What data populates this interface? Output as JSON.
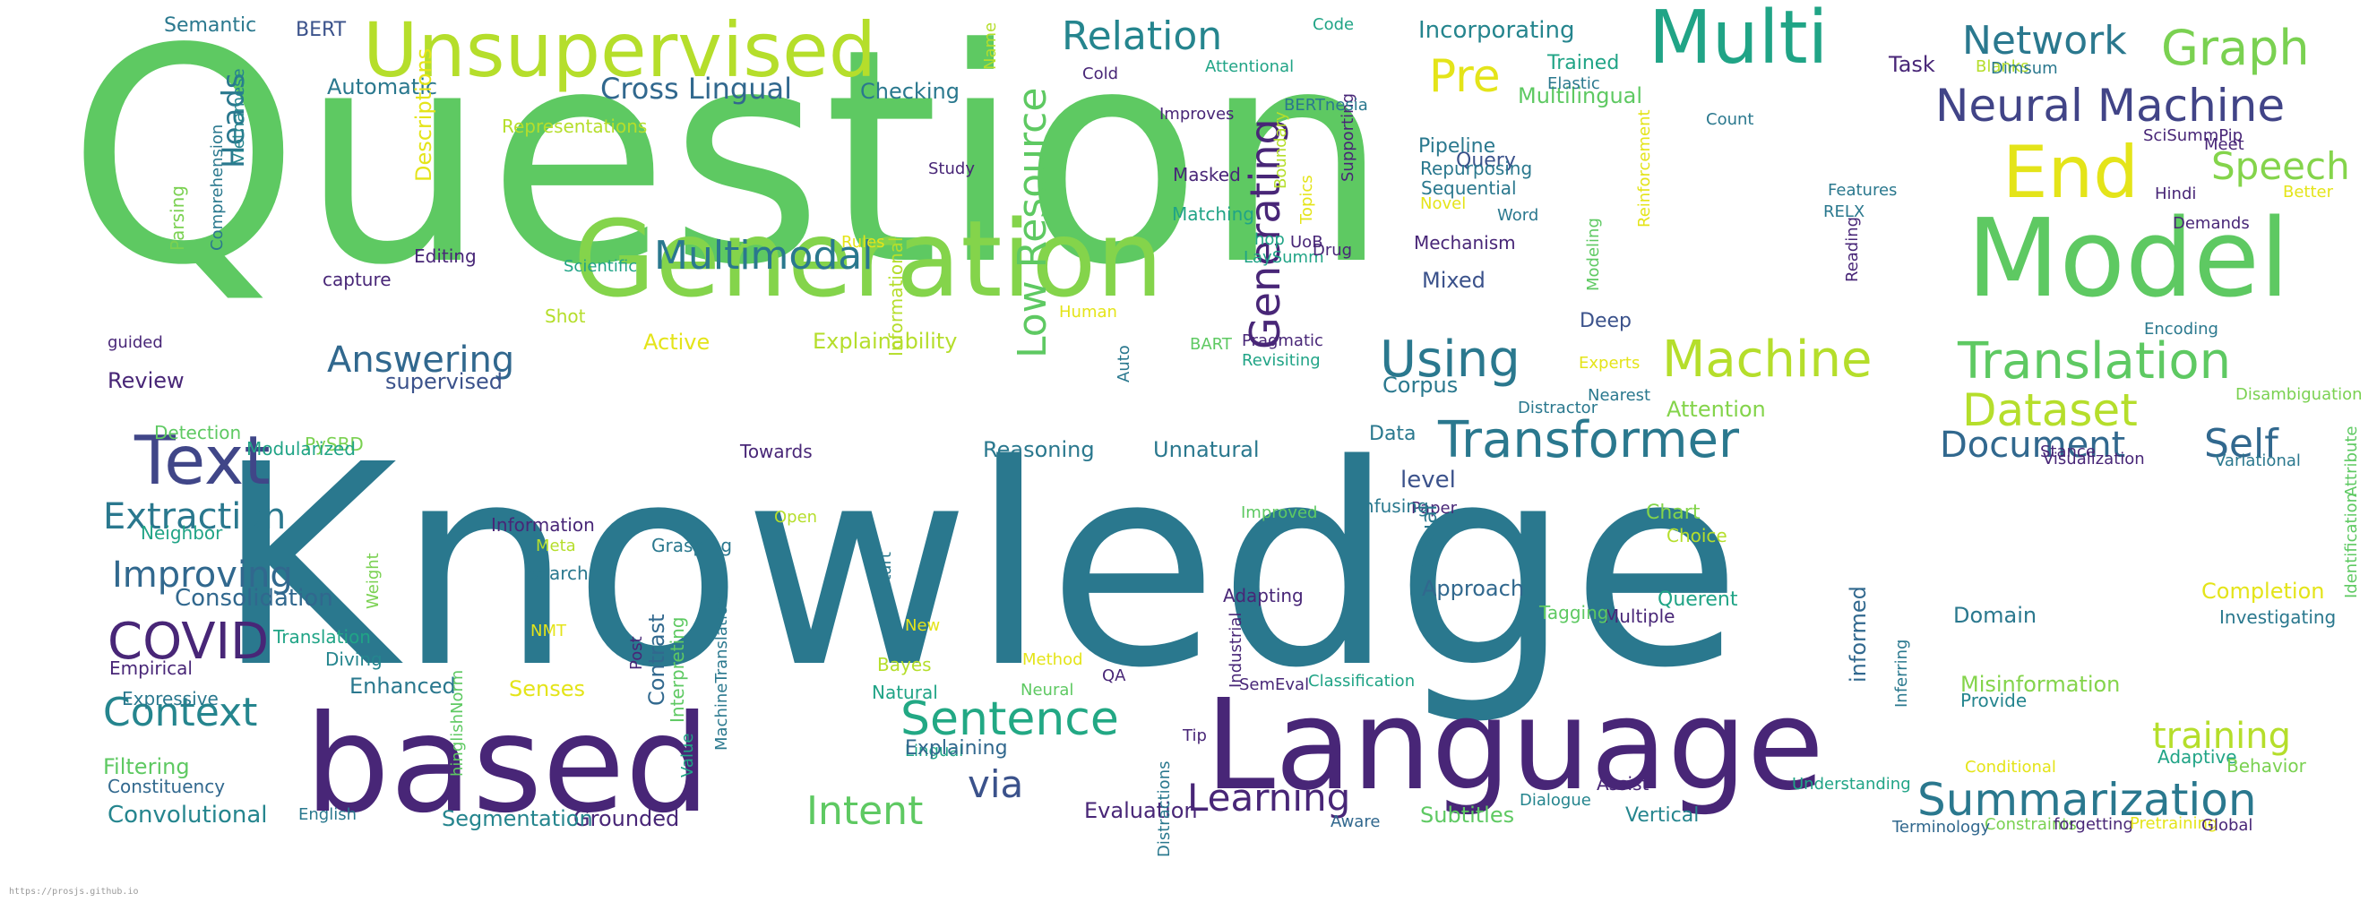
{
  "words": [
    {
      "text": "Question",
      "color": "#5ec962",
      "vertical": false
    },
    {
      "text": "Knowledge",
      "color": "#2a788e",
      "vertical": false
    },
    {
      "text": "based",
      "color": "#482677",
      "vertical": false
    },
    {
      "text": "Language",
      "color": "#482677",
      "vertical": false
    },
    {
      "text": "Generation",
      "color": "#84d44b",
      "vertical": false
    },
    {
      "text": "Model",
      "color": "#5ec962",
      "vertical": false
    },
    {
      "text": "Unsupervised",
      "color": "#b5de2b",
      "vertical": false
    },
    {
      "text": "Multi",
      "color": "#20a486",
      "vertical": false
    },
    {
      "text": "Text",
      "color": "#404688",
      "vertical": false
    },
    {
      "text": "End",
      "color": "#e4e419",
      "vertical": false
    },
    {
      "text": "Machine",
      "color": "#b5de2b",
      "vertical": false
    },
    {
      "text": "Translation",
      "color": "#5ec962",
      "vertical": false
    },
    {
      "text": "Transformer",
      "color": "#2a788e",
      "vertical": false
    },
    {
      "text": "Dataset",
      "color": "#b5de2b",
      "vertical": false
    },
    {
      "text": "Summarization",
      "color": "#2a788e",
      "vertical": false
    },
    {
      "text": "Sentence",
      "color": "#22a884",
      "vertical": false
    },
    {
      "text": "Answering",
      "color": "#31688e",
      "vertical": false
    },
    {
      "text": "COVID",
      "color": "#482677",
      "vertical": false
    },
    {
      "text": "Context",
      "color": "#25858e",
      "vertical": false
    },
    {
      "text": "Neural Machine",
      "color": "#414487",
      "vertical": false
    },
    {
      "text": "Graph",
      "color": "#7ad151",
      "vertical": false
    },
    {
      "text": "Network",
      "color": "#2a788e",
      "vertical": false
    },
    {
      "text": "Relation",
      "color": "#25858e",
      "vertical": false
    },
    {
      "text": "Pre",
      "color": "#e4e419",
      "vertical": false
    },
    {
      "text": "Speech",
      "color": "#84d44b",
      "vertical": false
    },
    {
      "text": "Using",
      "color": "#2a788e",
      "vertical": false
    },
    {
      "text": "Document",
      "color": "#31688e",
      "vertical": false
    },
    {
      "text": "Self",
      "color": "#31688e",
      "vertical": false
    },
    {
      "text": "Extraction",
      "color": "#2a788e",
      "vertical": false
    },
    {
      "text": "Improving",
      "color": "#31688e",
      "vertical": false
    },
    {
      "text": "Learning",
      "color": "#482677",
      "vertical": false
    },
    {
      "text": "Intent",
      "color": "#5ec962",
      "vertical": false
    },
    {
      "text": "via",
      "color": "#3b528b",
      "vertical": false
    },
    {
      "text": "training",
      "color": "#b5de2b",
      "vertical": false
    },
    {
      "text": "Multimodal",
      "color": "#2a788e",
      "vertical": false
    },
    {
      "text": "Cross Lingual",
      "color": "#31688e",
      "vertical": false
    },
    {
      "text": "Low Resource",
      "color": "#5ec962",
      "vertical": true
    },
    {
      "text": "Generating",
      "color": "#482677",
      "vertical": true
    },
    {
      "text": "Semantic",
      "color": "#2a788e",
      "vertical": false
    },
    {
      "text": "BERT",
      "color": "#3b528b",
      "vertical": false
    },
    {
      "text": "Automatic",
      "color": "#2a788e",
      "vertical": false
    },
    {
      "text": "Checking",
      "color": "#2a788e",
      "vertical": false
    },
    {
      "text": "Incorporating",
      "color": "#25858e",
      "vertical": false
    },
    {
      "text": "Trained",
      "color": "#20a486",
      "vertical": false
    },
    {
      "text": "Task",
      "color": "#482677",
      "vertical": false
    },
    {
      "text": "Multilingual",
      "color": "#5ec962",
      "vertical": false
    },
    {
      "text": "Query",
      "color": "#3b528b",
      "vertical": false
    },
    {
      "text": "Pipeline",
      "color": "#2a788e",
      "vertical": false
    },
    {
      "text": "Repurposing",
      "color": "#2a788e",
      "vertical": false
    },
    {
      "text": "Sequential",
      "color": "#2a788e",
      "vertical": false
    },
    {
      "text": "Mechanism",
      "color": "#482677",
      "vertical": false
    },
    {
      "text": "Mixed",
      "color": "#3b528b",
      "vertical": false
    },
    {
      "text": "Deep",
      "color": "#3b528b",
      "vertical": false
    },
    {
      "text": "Corpus",
      "color": "#2a788e",
      "vertical": false
    },
    {
      "text": "Attention",
      "color": "#84d44b",
      "vertical": false
    },
    {
      "text": "Data",
      "color": "#2a788e",
      "vertical": false
    },
    {
      "text": "level",
      "color": "#3b528b",
      "vertical": false
    },
    {
      "text": "Paper",
      "color": "#482677",
      "vertical": false
    },
    {
      "text": "Chart",
      "color": "#84d44b",
      "vertical": false
    },
    {
      "text": "Approach",
      "color": "#31688e",
      "vertical": false
    },
    {
      "text": "Multiple",
      "color": "#482677",
      "vertical": false
    },
    {
      "text": "Querent",
      "color": "#20a486",
      "vertical": false
    },
    {
      "text": "Choice",
      "color": "#b5de2b",
      "vertical": false
    },
    {
      "text": "Completion",
      "color": "#e4e419",
      "vertical": false
    },
    {
      "text": "Investigating",
      "color": "#2a788e",
      "vertical": false
    },
    {
      "text": "Domain",
      "color": "#2a788e",
      "vertical": false
    },
    {
      "text": "Misinformation",
      "color": "#84d44b",
      "vertical": false
    },
    {
      "text": "Provide",
      "color": "#25858e",
      "vertical": false
    },
    {
      "text": "Adaptive",
      "color": "#20a486",
      "vertical": false
    },
    {
      "text": "Behavior",
      "color": "#7ad151",
      "vertical": false
    },
    {
      "text": "Conditional",
      "color": "#e4e419",
      "vertical": false
    },
    {
      "text": "Constraints",
      "color": "#7ad151",
      "vertical": false
    },
    {
      "text": "forgetting",
      "color": "#482677",
      "vertical": false
    },
    {
      "text": "Pretraining",
      "color": "#e4e419",
      "vertical": false
    },
    {
      "text": "Global",
      "color": "#482677",
      "vertical": false
    },
    {
      "text": "Terminology",
      "color": "#31688e",
      "vertical": false
    },
    {
      "text": "Understanding",
      "color": "#20a486",
      "vertical": false
    },
    {
      "text": "Vertical",
      "color": "#25858e",
      "vertical": false
    },
    {
      "text": "Assist",
      "color": "#482677",
      "vertical": false
    },
    {
      "text": "Dialogue",
      "color": "#25858e",
      "vertical": false
    },
    {
      "text": "Subtitles",
      "color": "#5ec962",
      "vertical": false
    },
    {
      "text": "Aware",
      "color": "#31688e",
      "vertical": false
    },
    {
      "text": "Evaluation",
      "color": "#482677",
      "vertical": false
    },
    {
      "text": "Grounded",
      "color": "#482677",
      "vertical": false
    },
    {
      "text": "Segmentation",
      "color": "#25858e",
      "vertical": false
    },
    {
      "text": "English",
      "color": "#2a788e",
      "vertical": false
    },
    {
      "text": "Convolutional",
      "color": "#25858e",
      "vertical": false
    },
    {
      "text": "Constituency",
      "color": "#31688e",
      "vertical": false
    },
    {
      "text": "Filtering",
      "color": "#5ec962",
      "vertical": false
    },
    {
      "text": "Expressive",
      "color": "#2a788e",
      "vertical": false
    },
    {
      "text": "Empirical",
      "color": "#482677",
      "vertical": false
    },
    {
      "text": "Enhanced",
      "color": "#2a788e",
      "vertical": false
    },
    {
      "text": "Senses",
      "color": "#e4e419",
      "vertical": false
    },
    {
      "text": "Diving",
      "color": "#25858e",
      "vertical": false
    },
    {
      "text": "Translation",
      "color": "#20a486",
      "vertical": false
    },
    {
      "text": "Consolidation",
      "color": "#31688e",
      "vertical": false
    },
    {
      "text": "Neighbor",
      "color": "#20a486",
      "vertical": false
    },
    {
      "text": "PySBD",
      "color": "#7ad151",
      "vertical": false
    },
    {
      "text": "Modularized",
      "color": "#20a486",
      "vertical": false
    },
    {
      "text": "Detection",
      "color": "#5ec962",
      "vertical": false
    },
    {
      "text": "supervised",
      "color": "#3b528b",
      "vertical": false
    },
    {
      "text": "Review",
      "color": "#482677",
      "vertical": false
    },
    {
      "text": "guided",
      "color": "#482677",
      "vertical": false
    },
    {
      "text": "Shot",
      "color": "#b5de2b",
      "vertical": false
    },
    {
      "text": "capture",
      "color": "#482677",
      "vertical": false
    },
    {
      "text": "Editing",
      "color": "#482677",
      "vertical": false
    },
    {
      "text": "Parsing",
      "color": "#7ad151",
      "vertical": true
    },
    {
      "text": "Comprehension",
      "color": "#2a788e",
      "vertical": true
    },
    {
      "text": "Heads",
      "color": "#2a788e",
      "vertical": true
    },
    {
      "text": "Vietnamese",
      "color": "#25858e",
      "vertical": true
    },
    {
      "text": "Descriptions",
      "color": "#e4e419",
      "vertical": true
    },
    {
      "text": "Representations",
      "color": "#b5de2b",
      "vertical": false
    },
    {
      "text": "Scientific",
      "color": "#20a486",
      "vertical": false
    },
    {
      "text": "Active",
      "color": "#e4e419",
      "vertical": false
    },
    {
      "text": "Explainability",
      "color": "#b5de2b",
      "vertical": false
    },
    {
      "text": "Towards",
      "color": "#482677",
      "vertical": false
    },
    {
      "text": "Reasoning",
      "color": "#2a788e",
      "vertical": false
    },
    {
      "text": "Unnatural",
      "color": "#2a788e",
      "vertical": false
    },
    {
      "text": "Informational",
      "color": "#b5de2b",
      "vertical": true
    },
    {
      "text": "Rules",
      "color": "#e4e419",
      "vertical": false
    },
    {
      "text": "Study",
      "color": "#482677",
      "vertical": false
    },
    {
      "text": "Matching",
      "color": "#20a486",
      "vertical": false
    },
    {
      "text": "hop",
      "color": "#20a486",
      "vertical": false
    },
    {
      "text": "LaySumm",
      "color": "#20a486",
      "vertical": false
    },
    {
      "text": "UoB",
      "color": "#482677",
      "vertical": false
    },
    {
      "text": "Drug",
      "color": "#482677",
      "vertical": false
    },
    {
      "text": "Boundary",
      "color": "#b5de2b",
      "vertical": true
    },
    {
      "text": "Topics",
      "color": "#e4e419",
      "vertical": true
    },
    {
      "text": "Supporting",
      "color": "#482677",
      "vertical": true
    },
    {
      "text": "Masked",
      "color": "#482677",
      "vertical": false
    },
    {
      "text": "Improves",
      "color": "#482677",
      "vertical": false
    },
    {
      "text": "Attentional",
      "color": "#20a486",
      "vertical": false
    },
    {
      "text": "Cold",
      "color": "#482677",
      "vertical": false
    },
    {
      "text": "Code",
      "color": "#20a486",
      "vertical": false
    },
    {
      "text": "Name",
      "color": "#b5de2b",
      "vertical": true
    },
    {
      "text": "BERTnesia",
      "color": "#2a788e",
      "vertical": false
    },
    {
      "text": "Novel",
      "color": "#e4e419",
      "vertical": false
    },
    {
      "text": "Word",
      "color": "#2a788e",
      "vertical": false
    },
    {
      "text": "Reinforcement",
      "color": "#e4e419",
      "vertical": true
    },
    {
      "text": "Modeling",
      "color": "#5ec962",
      "vertical": true
    },
    {
      "text": "Reading",
      "color": "#482677",
      "vertical": true
    },
    {
      "text": "RELX",
      "color": "#2a788e",
      "vertical": false
    },
    {
      "text": "Features",
      "color": "#2a788e",
      "vertical": false
    },
    {
      "text": "Elastic",
      "color": "#2a788e",
      "vertical": false
    },
    {
      "text": "Count",
      "color": "#2a788e",
      "vertical": false
    },
    {
      "text": "Blanks",
      "color": "#b5de2b",
      "vertical": false
    },
    {
      "text": "Dimsum",
      "color": "#2a788e",
      "vertical": false
    },
    {
      "text": "SciSummPip",
      "color": "#482677",
      "vertical": false
    },
    {
      "text": "Meet",
      "color": "#482677",
      "vertical": false
    },
    {
      "text": "Better",
      "color": "#e4e419",
      "vertical": false
    },
    {
      "text": "Hindi",
      "color": "#482677",
      "vertical": false
    },
    {
      "text": "Demands",
      "color": "#482677",
      "vertical": false
    },
    {
      "text": "Encoding",
      "color": "#2a788e",
      "vertical": false
    },
    {
      "text": "Disambiguation",
      "color": "#7ad151",
      "vertical": false
    },
    {
      "text": "Variational",
      "color": "#2a788e",
      "vertical": false
    },
    {
      "text": "Visualization",
      "color": "#482677",
      "vertical": false
    },
    {
      "text": "Stance",
      "color": "#482677",
      "vertical": false
    },
    {
      "text": "Attribute",
      "color": "#5ec962",
      "vertical": true
    },
    {
      "text": "Identification",
      "color": "#5ec962",
      "vertical": true
    },
    {
      "text": "Experts",
      "color": "#e4e419",
      "vertical": false
    },
    {
      "text": "Nearest",
      "color": "#2a788e",
      "vertical": false
    },
    {
      "text": "Distractor",
      "color": "#2a788e",
      "vertical": false
    },
    {
      "text": "Pragmatic",
      "color": "#482677",
      "vertical": false
    },
    {
      "text": "Revisiting",
      "color": "#20a486",
      "vertical": false
    },
    {
      "text": "BART",
      "color": "#5ec962",
      "vertical": false
    },
    {
      "text": "Auto",
      "color": "#2a788e",
      "vertical": true
    },
    {
      "text": "Human",
      "color": "#e4e419",
      "vertical": false
    },
    {
      "text": "Visual",
      "color": "#2a788e",
      "vertical": true
    },
    {
      "text": "Infusing",
      "color": "#2a788e",
      "vertical": false
    },
    {
      "text": "Improved",
      "color": "#5ec962",
      "vertical": false
    },
    {
      "text": "Adapting",
      "color": "#482677",
      "vertical": false
    },
    {
      "text": "Tagging",
      "color": "#5ec962",
      "vertical": false
    },
    {
      "text": "Industrial",
      "color": "#482677",
      "vertical": true
    },
    {
      "text": "Classification",
      "color": "#20a486",
      "vertical": false
    },
    {
      "text": "SemEval",
      "color": "#482677",
      "vertical": false
    },
    {
      "text": "Inferring",
      "color": "#2a788e",
      "vertical": true
    },
    {
      "text": "informed",
      "color": "#31688e",
      "vertical": true
    },
    {
      "text": "Distractions",
      "color": "#2a788e",
      "vertical": true
    },
    {
      "text": "Tip",
      "color": "#482677",
      "vertical": false
    },
    {
      "text": "Lingual",
      "color": "#20a486",
      "vertical": false
    },
    {
      "text": "Explaining",
      "color": "#31688e",
      "vertical": false
    },
    {
      "text": "Natural",
      "color": "#20a486",
      "vertical": false
    },
    {
      "text": "Neural",
      "color": "#5ec962",
      "vertical": false
    },
    {
      "text": "Method",
      "color": "#e4e419",
      "vertical": false
    },
    {
      "text": "QA",
      "color": "#482677",
      "vertical": false
    },
    {
      "text": "MachineTranslation",
      "color": "#2a788e",
      "vertical": true
    },
    {
      "text": "Value",
      "color": "#20a486",
      "vertical": true
    },
    {
      "text": "Interpreting",
      "color": "#5ec962",
      "vertical": true
    },
    {
      "text": "Contrast",
      "color": "#31688e",
      "vertical": true
    },
    {
      "text": "Post",
      "color": "#482677",
      "vertical": true
    },
    {
      "text": "Bayes",
      "color": "#b5de2b",
      "vertical": false
    },
    {
      "text": "New",
      "color": "#e4e419",
      "vertical": false
    },
    {
      "text": "start",
      "color": "#2a788e",
      "vertical": true
    },
    {
      "text": "Open",
      "color": "#b5de2b",
      "vertical": false
    },
    {
      "text": "Grasping",
      "color": "#2a788e",
      "vertical": false
    },
    {
      "text": "Information",
      "color": "#482677",
      "vertical": false
    },
    {
      "text": "Meta",
      "color": "#b5de2b",
      "vertical": false
    },
    {
      "text": "Search",
      "color": "#2a788e",
      "vertical": false
    },
    {
      "text": "NMT",
      "color": "#e4e419",
      "vertical": false
    },
    {
      "text": "Weight",
      "color": "#7ad151",
      "vertical": true
    },
    {
      "text": "hinglishNorm",
      "color": "#5ec962",
      "vertical": true
    }
  ],
  "watermark": "https://prosjs.github.io"
}
